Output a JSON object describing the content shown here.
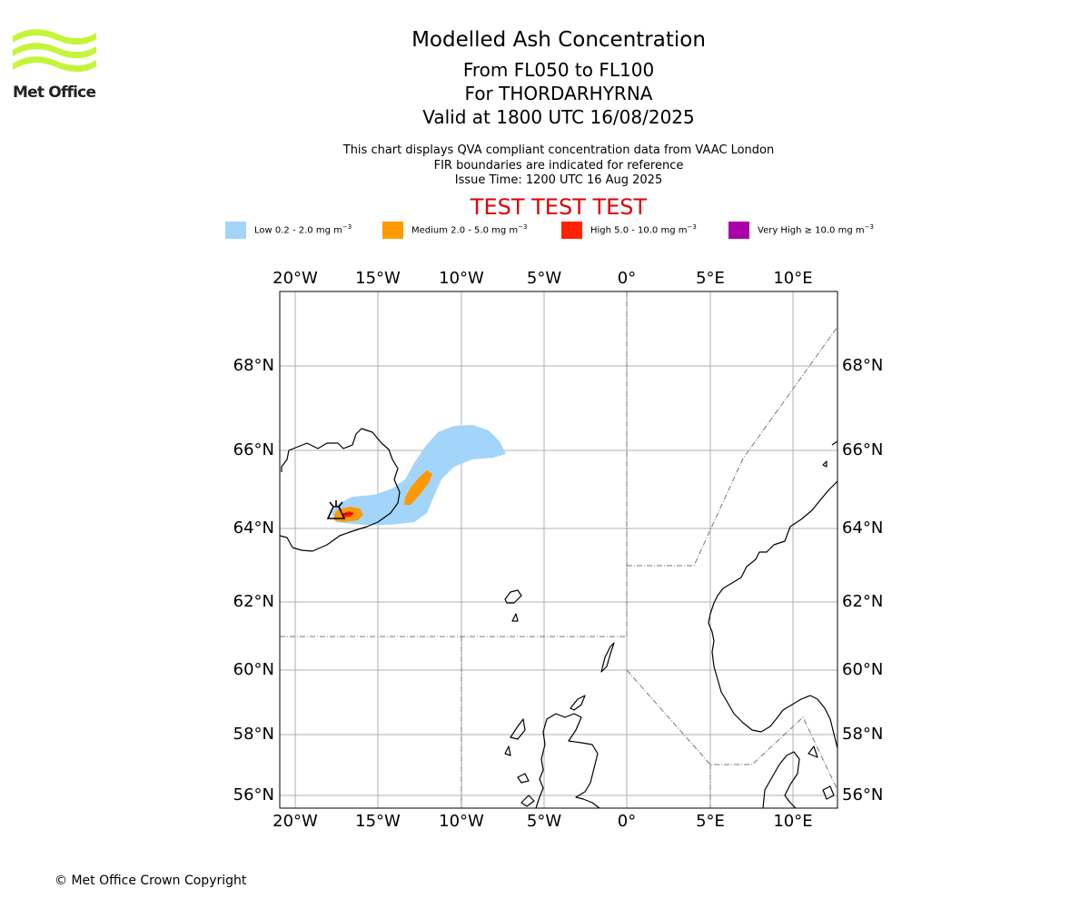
{
  "header": {
    "logo_text": "Met Office",
    "title": "Modelled Ash Concentration",
    "flight_levels": "From FL050 to FL100",
    "volcano": "For THORDARHYRNA",
    "valid": "Valid at 1800 UTC 16/08/2025",
    "desc1": "This chart displays QVA compliant concentration data from VAAC London",
    "desc2": "FIR boundaries are indicated for reference",
    "issue": "Issue Time: 1200 UTC 16 Aug 2025",
    "test_banner": "TEST TEST TEST"
  },
  "legend": [
    {
      "label": "Low 0.2 - 2.0 mg m",
      "unit_exp": "−3",
      "color": "#a3d5fb"
    },
    {
      "label": "Medium 2.0 - 5.0 mg m",
      "unit_exp": "−3",
      "color": "#ff9900"
    },
    {
      "label": "High 5.0 - 10.0 mg m",
      "unit_exp": "−3",
      "color": "#ff2200"
    },
    {
      "label": "Very High  ≥  10.0 mg m",
      "unit_exp": "−3",
      "color": "#aa00aa"
    }
  ],
  "map": {
    "lon_range": [
      -22,
      12.5
    ],
    "lat_range": [
      55.7,
      69.8
    ],
    "lon_ticks": [
      "20°W",
      "15°W",
      "10°W",
      "5°W",
      "0°",
      "5°E",
      "10°E"
    ],
    "lat_ticks": [
      "68°N",
      "66°N",
      "64°N",
      "62°N",
      "60°N",
      "58°N",
      "56°N"
    ],
    "gridlines": true
  },
  "footer": {
    "copyright": "© Met Office Crown Copyright"
  }
}
